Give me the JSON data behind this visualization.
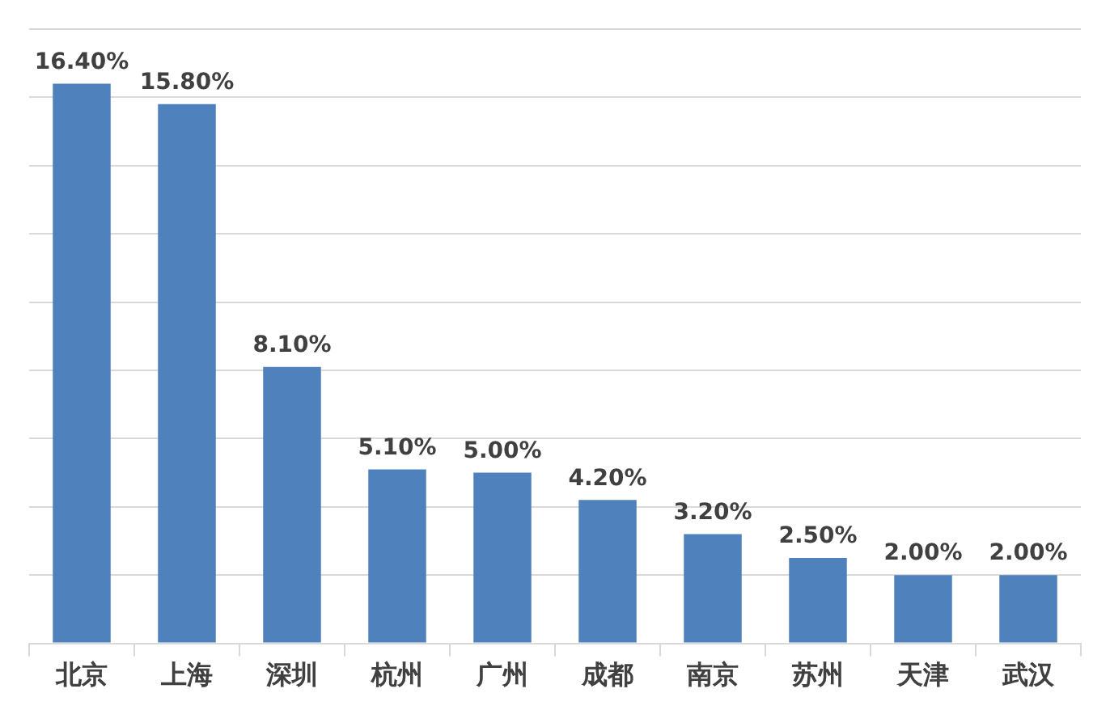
{
  "chart_data": {
    "type": "bar",
    "categories": [
      "北京",
      "上海",
      "深圳",
      "杭州",
      "广州",
      "成都",
      "南京",
      "苏州",
      "天津",
      "武汉"
    ],
    "values": [
      16.4,
      15.8,
      8.1,
      5.1,
      5.0,
      4.2,
      3.2,
      2.5,
      2.0,
      2.0
    ],
    "value_labels": [
      "16.40%",
      "15.80%",
      "8.10%",
      "5.10%",
      "5.00%",
      "4.20%",
      "3.20%",
      "2.50%",
      "2.00%",
      "2.00%"
    ],
    "color": "#4f81bd",
    "ylim": [
      0,
      18
    ],
    "yticks": [
      {
        "value": 0,
        "label": null
      },
      {
        "value": 2,
        "label": null
      },
      {
        "value": 4,
        "label": null
      },
      {
        "value": 6,
        "label": null
      },
      {
        "value": 8,
        "label": null
      },
      {
        "value": 10,
        "label": null
      },
      {
        "value": 12,
        "label": null
      },
      {
        "value": 14,
        "label": null
      },
      {
        "value": 16,
        "label": null
      },
      {
        "value": 18,
        "label": null
      }
    ],
    "grid": "y",
    "tick_labels": "x",
    "legend": false
  }
}
